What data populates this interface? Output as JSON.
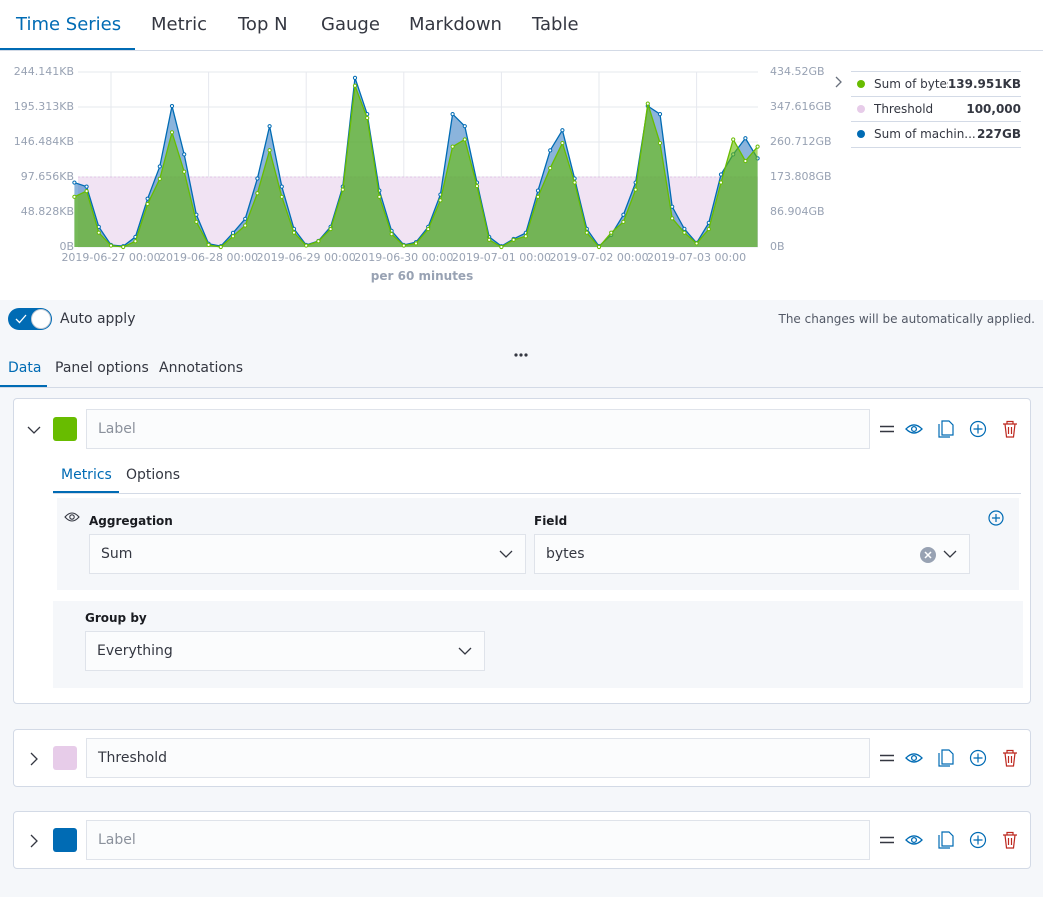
{
  "viz_tabs": [
    "Time Series",
    "Metric",
    "Top N",
    "Gauge",
    "Markdown",
    "Table"
  ],
  "chart": {
    "left_axis": [
      "0B",
      "48.828KB",
      "97.656KB",
      "146.484KB",
      "195.313KB",
      "244.141KB"
    ],
    "right_axis": [
      "0B",
      "86.904GB",
      "173.808GB",
      "260.712GB",
      "347.616GB",
      "434.52GB"
    ],
    "x_ticks": [
      "2019-06-27 00:00",
      "2019-06-28 00:00",
      "2019-06-29 00:00",
      "2019-06-30 00:00",
      "2019-07-01 00:00",
      "2019-07-02 00:00",
      "2019-07-03 00:00"
    ],
    "interval_label": "per 60 minutes",
    "legend": [
      {
        "name": "Sum of bytes",
        "value": "139.951KB",
        "color": "#68bc00"
      },
      {
        "name": "Threshold",
        "value": "100,000",
        "color": "#e7cce9"
      },
      {
        "name": "Sum of machin...",
        "value": "227GB",
        "color": "#006bb4"
      }
    ]
  },
  "chart_data": {
    "type": "area",
    "x": [
      "2019-06-26 15:00",
      "2019-06-26 18:00",
      "2019-06-26 21:00",
      "2019-06-27 00:00",
      "2019-06-27 03:00",
      "2019-06-27 06:00",
      "2019-06-27 09:00",
      "2019-06-27 12:00",
      "2019-06-27 15:00",
      "2019-06-27 18:00",
      "2019-06-27 21:00",
      "2019-06-28 00:00",
      "2019-06-28 03:00",
      "2019-06-28 06:00",
      "2019-06-28 09:00",
      "2019-06-28 12:00",
      "2019-06-28 15:00",
      "2019-06-28 18:00",
      "2019-06-28 21:00",
      "2019-06-29 00:00",
      "2019-06-29 03:00",
      "2019-06-29 06:00",
      "2019-06-29 09:00",
      "2019-06-29 12:00",
      "2019-06-29 15:00",
      "2019-06-29 18:00",
      "2019-06-29 21:00",
      "2019-06-30 00:00",
      "2019-06-30 03:00",
      "2019-06-30 06:00",
      "2019-06-30 09:00",
      "2019-06-30 12:00",
      "2019-06-30 15:00",
      "2019-06-30 18:00",
      "2019-06-30 21:00",
      "2019-07-01 00:00",
      "2019-07-01 03:00",
      "2019-07-01 06:00",
      "2019-07-01 09:00",
      "2019-07-01 12:00",
      "2019-07-01 15:00",
      "2019-07-01 18:00",
      "2019-07-01 21:00",
      "2019-07-02 00:00",
      "2019-07-02 03:00",
      "2019-07-02 06:00",
      "2019-07-02 09:00",
      "2019-07-02 12:00",
      "2019-07-02 15:00",
      "2019-07-02 18:00",
      "2019-07-02 21:00",
      "2019-07-03 00:00",
      "2019-07-03 03:00",
      "2019-07-03 06:00",
      "2019-07-03 09:00",
      "2019-07-03 12:00",
      "2019-07-03 15:00"
    ],
    "series": [
      {
        "name": "Sum of bytes",
        "unit": "KB",
        "axis": "left",
        "color": "#68bc00",
        "values": [
          70,
          78,
          20,
          2,
          0,
          8,
          60,
          95,
          160,
          105,
          35,
          3,
          0,
          15,
          30,
          75,
          135,
          70,
          20,
          2,
          8,
          25,
          80,
          225,
          180,
          70,
          18,
          2,
          5,
          25,
          65,
          140,
          150,
          85,
          10,
          0,
          10,
          15,
          70,
          110,
          145,
          90,
          20,
          0,
          20,
          35,
          80,
          200,
          145,
          40,
          20,
          5,
          25,
          90,
          150,
          120,
          140
        ]
      },
      {
        "name": "Threshold",
        "unit": "bytes",
        "axis": "left",
        "color": "#e7cce9",
        "values": 100000
      },
      {
        "name": "Sum of machin...",
        "unit": "GB",
        "axis": "right",
        "color": "#006bb4",
        "values": [
          160,
          150,
          50,
          5,
          2,
          25,
          120,
          200,
          350,
          230,
          80,
          8,
          2,
          35,
          70,
          170,
          300,
          150,
          45,
          5,
          15,
          50,
          150,
          420,
          330,
          140,
          40,
          5,
          12,
          50,
          130,
          330,
          300,
          160,
          25,
          2,
          20,
          35,
          140,
          240,
          290,
          170,
          45,
          2,
          30,
          80,
          160,
          350,
          330,
          100,
          45,
          10,
          60,
          180,
          230,
          270,
          220
        ]
      }
    ],
    "ylim_left_kb": [
      0,
      244.141
    ],
    "ylim_right_gb": [
      0,
      434.52
    ],
    "grid": true,
    "legend": "right"
  },
  "auto_apply": {
    "label": "Auto apply",
    "enabled": true,
    "note": "The changes will be automatically applied."
  },
  "editor_tabs": [
    "Data",
    "Panel options",
    "Annotations"
  ],
  "series_panels": [
    {
      "color": "#68bc00",
      "label_value": "",
      "label_placeholder": "Label",
      "expanded": true,
      "subtabs": [
        "Metrics",
        "Options"
      ],
      "aggregation_label": "Aggregation",
      "aggregation": "Sum",
      "field_label": "Field",
      "field": "bytes",
      "group_by_label": "Group by",
      "group_by": "Everything"
    },
    {
      "color": "#e7cce9",
      "label_value": "Threshold",
      "label_placeholder": "Label",
      "expanded": false
    },
    {
      "color": "#006bb4",
      "label_value": "",
      "label_placeholder": "Label",
      "expanded": false
    }
  ]
}
